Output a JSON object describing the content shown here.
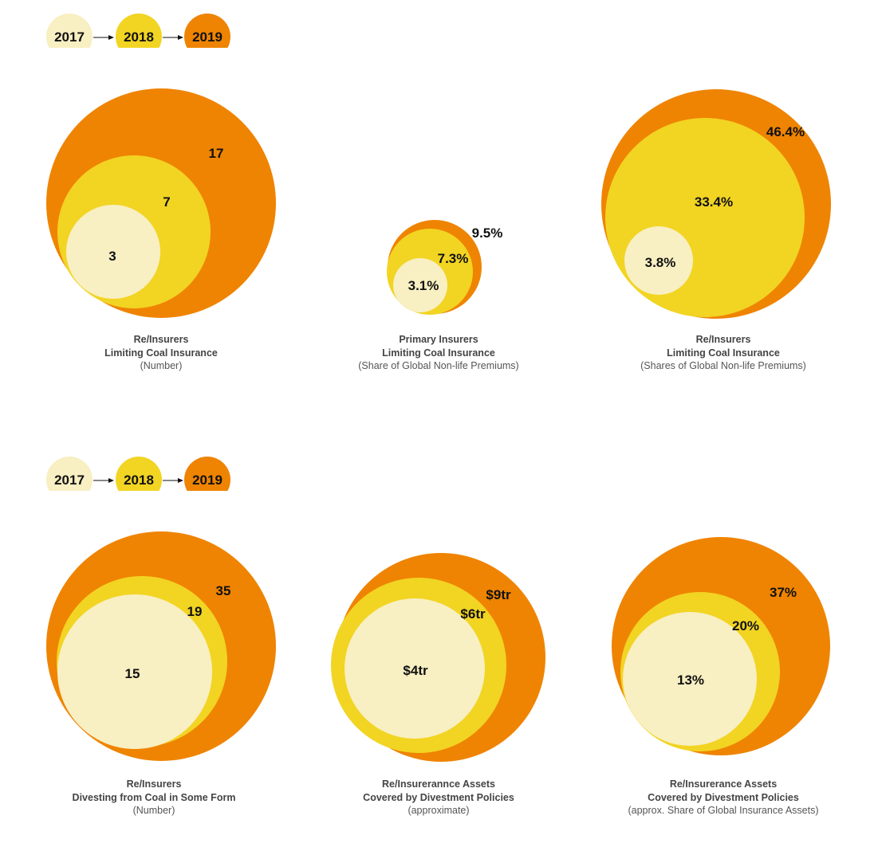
{
  "colors": {
    "2017": "#f8efc2",
    "2018": "#f2d423",
    "2019": "#ef8402",
    "text": "#111111"
  },
  "legend_years": [
    "2017",
    "2018",
    "2019"
  ],
  "chart_data": [
    {
      "type": "nested-bubble",
      "title": "Re/Insurers",
      "subtitle": "Limiting Coal Insurance",
      "note": "(Number)",
      "series": [
        {
          "name": "2019",
          "value": 17,
          "label": "17"
        },
        {
          "name": "2018",
          "value": 7,
          "label": "7"
        },
        {
          "name": "2017",
          "value": 3,
          "label": "3"
        }
      ]
    },
    {
      "type": "nested-bubble",
      "title": "Primary Insurers",
      "subtitle": "Limiting Coal Insurance",
      "note": "(Share of Global Non-life Premiums)",
      "series": [
        {
          "name": "2019",
          "value": 9.5,
          "label": "9.5%"
        },
        {
          "name": "2018",
          "value": 7.3,
          "label": "7.3%"
        },
        {
          "name": "2017",
          "value": 3.1,
          "label": "3.1%"
        }
      ]
    },
    {
      "type": "nested-bubble",
      "title": "Re/Insurers",
      "subtitle": "Limiting Coal Insurance",
      "note": "(Shares of Global Non-life Premiums)",
      "series": [
        {
          "name": "2019",
          "value": 46.4,
          "label": "46.4%"
        },
        {
          "name": "2018",
          "value": 33.4,
          "label": "33.4%"
        },
        {
          "name": "2017",
          "value": 3.8,
          "label": "3.8%"
        }
      ]
    },
    {
      "type": "nested-bubble",
      "title": "Re/Insurers",
      "subtitle": "Divesting from Coal in Some Form",
      "note": "(Number)",
      "series": [
        {
          "name": "2019",
          "value": 35,
          "label": "35"
        },
        {
          "name": "2018",
          "value": 19,
          "label": "19"
        },
        {
          "name": "2017",
          "value": 15,
          "label": "15"
        }
      ]
    },
    {
      "type": "nested-bubble",
      "title": "Re/Insurerannce Assets",
      "subtitle": "Covered by Divestment Policies",
      "note": "(approximate)",
      "series": [
        {
          "name": "2019",
          "value": 9,
          "label": "$9tr"
        },
        {
          "name": "2018",
          "value": 6,
          "label": "$6tr"
        },
        {
          "name": "2017",
          "value": 4,
          "label": "$4tr"
        }
      ]
    },
    {
      "type": "nested-bubble",
      "title": "Re/Insurerance Assets",
      "subtitle": "Covered by Divestment Policies",
      "note": "(approx. Share of Global Insurance Assets)",
      "series": [
        {
          "name": "2019",
          "value": 37,
          "label": "37%"
        },
        {
          "name": "2018",
          "value": 20,
          "label": "20%"
        },
        {
          "name": "2017",
          "value": 13,
          "label": "13%"
        }
      ]
    }
  ]
}
